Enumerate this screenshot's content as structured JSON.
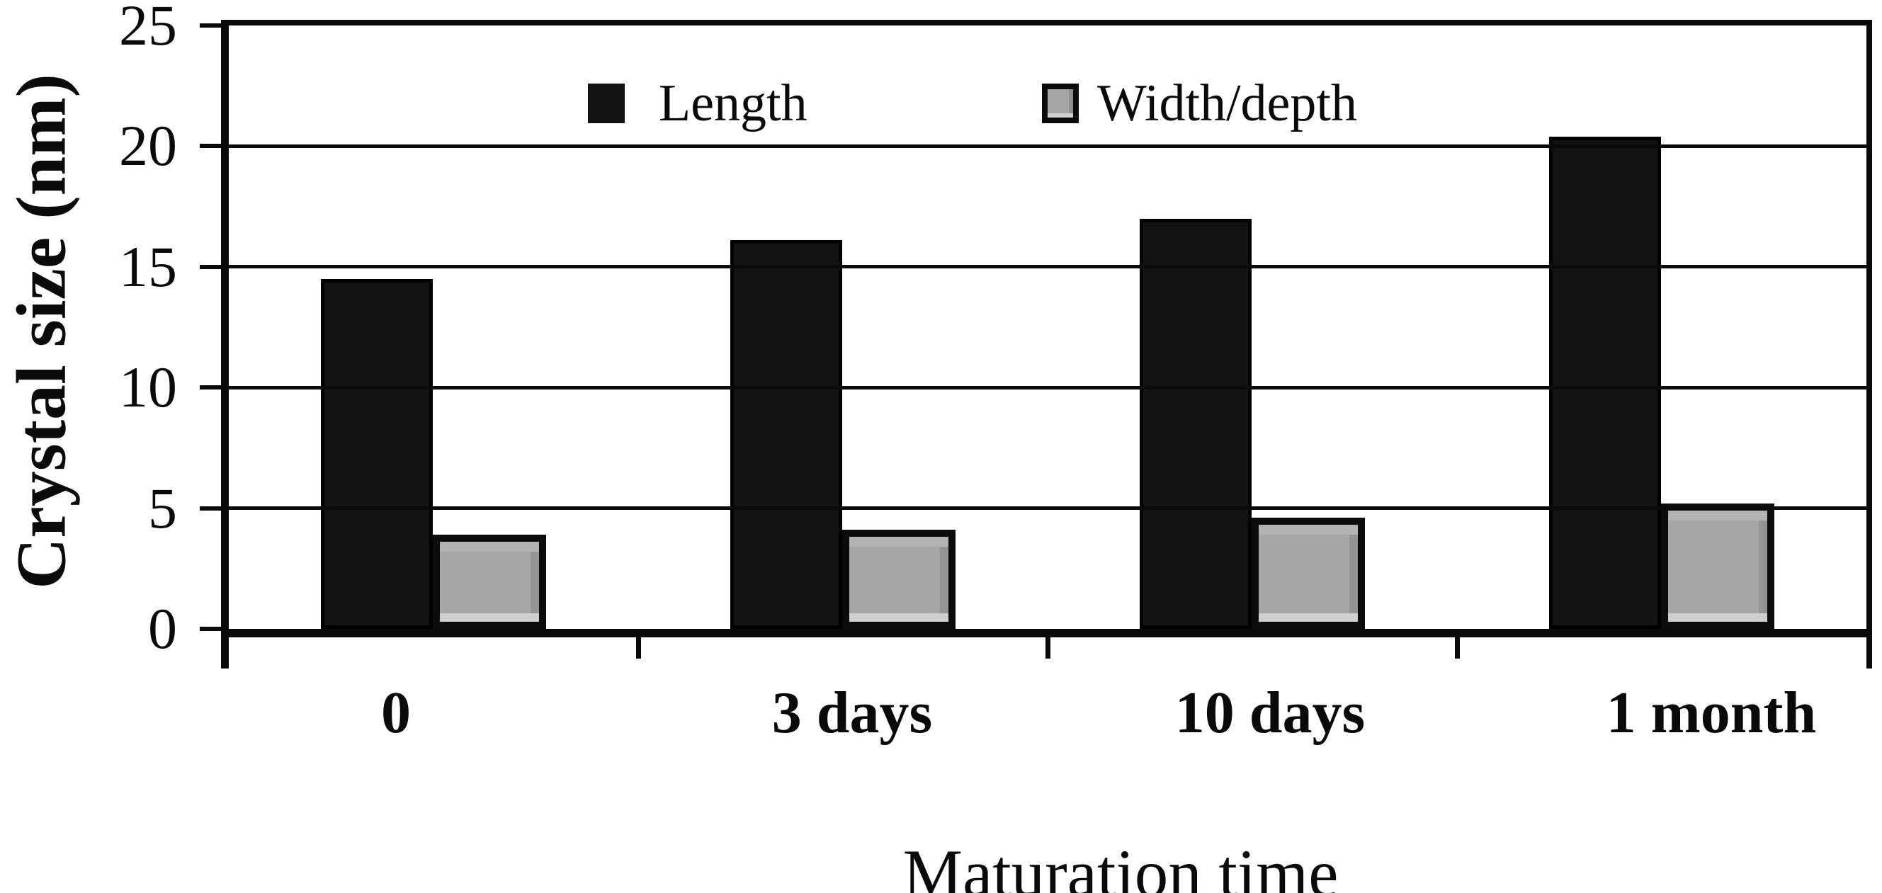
{
  "figure": {
    "background_color": "#ffffff",
    "axis_color": "#0a0a0a"
  },
  "chart_data": {
    "type": "bar",
    "title": "",
    "categories": [
      "0",
      "3 days",
      "10 days",
      "1 month"
    ],
    "series": [
      {
        "name": "Length",
        "color": "#131313",
        "values": [
          14.5,
          16.1,
          17.0,
          20.4
        ]
      },
      {
        "name": "Width/depth",
        "color": "#a6a6a6",
        "border_color": "#0b0b0b",
        "values": [
          3.9,
          4.1,
          4.6,
          5.2
        ]
      }
    ],
    "xlabel": "Maturation time",
    "ylabel": "Crystal size (nm)",
    "ylim": [
      0,
      25
    ],
    "yticks": [
      "0",
      "5",
      "10",
      "15",
      "20",
      "25"
    ],
    "grid": true,
    "legend_position": "top-inside"
  }
}
